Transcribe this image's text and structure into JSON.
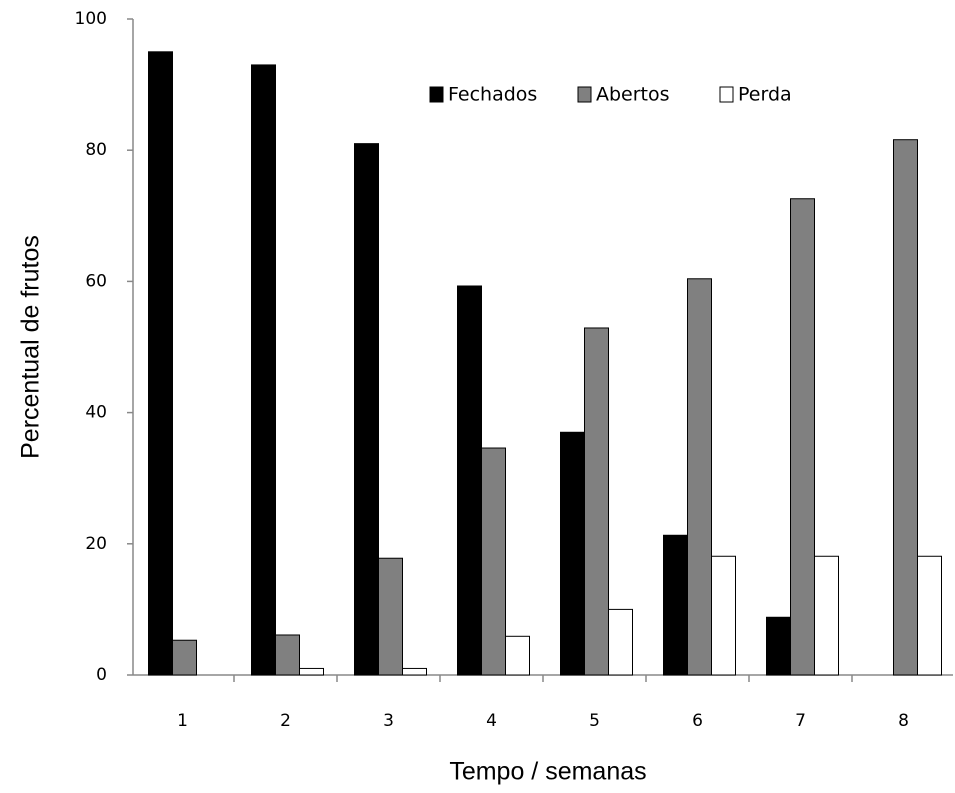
{
  "chart_data": {
    "type": "bar",
    "x_label": "Tempo / semanas",
    "y_label": "Percentual de frutos",
    "categories": [
      "1",
      "2",
      "3",
      "4",
      "5",
      "6",
      "7",
      "8"
    ],
    "series": [
      {
        "name": "Fechados",
        "color": "#000000",
        "values": [
          95,
          93,
          81,
          59.3,
          37,
          21.3,
          8.8,
          0
        ]
      },
      {
        "name": "Abertos",
        "color": "#808080",
        "values": [
          5.3,
          6.1,
          17.8,
          34.6,
          52.9,
          60.4,
          72.6,
          81.6
        ]
      },
      {
        "name": "Perda",
        "color": "#ffffff",
        "values": [
          0,
          1,
          1,
          5.9,
          10,
          18.1,
          18.1,
          18.1
        ]
      }
    ],
    "ylim": [
      0,
      100
    ],
    "yticks": [
      0,
      20,
      40,
      60,
      80,
      100
    ],
    "grid": false,
    "legend": "top"
  }
}
